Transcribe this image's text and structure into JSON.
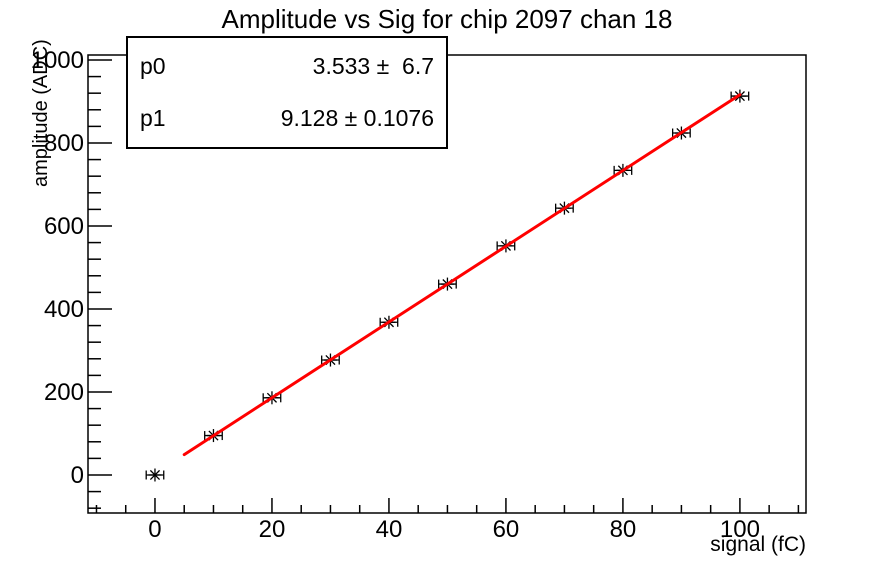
{
  "chart_data": {
    "type": "scatter",
    "title": "Amplitude vs Sig for chip 2097 chan 18",
    "xlabel": "signal (fC)",
    "ylabel": "amplitude (ADC)",
    "x": [
      0,
      10,
      20,
      30,
      40,
      50,
      60,
      70,
      80,
      90,
      100
    ],
    "y": [
      0,
      95,
      186,
      277,
      368,
      460,
      552,
      643,
      734,
      824,
      913
    ],
    "xerr": 1.5,
    "xlim": [
      -11.45,
      111.3
    ],
    "ylim": [
      -91.6,
      1012
    ],
    "x_major_ticks": [
      0,
      20,
      40,
      60,
      80,
      100
    ],
    "y_major_ticks": [
      0,
      200,
      400,
      600,
      800,
      1000
    ],
    "x_minor_step": 5,
    "y_minor_step": 40,
    "grid": false,
    "legend": "none",
    "marker": "star",
    "colors": {
      "marker": "#000000",
      "fit_line": "#ff0000",
      "axis": "#000000",
      "background": "#ffffff"
    },
    "fit": {
      "p0": 3.533,
      "p1": 9.128,
      "x_range": [
        5,
        100
      ]
    }
  },
  "stats_box": {
    "rows": [
      {
        "name": "p0",
        "value": "3.533 ±  6.7"
      },
      {
        "name": "p1",
        "value": "9.128 ± 0.1076"
      }
    ]
  }
}
